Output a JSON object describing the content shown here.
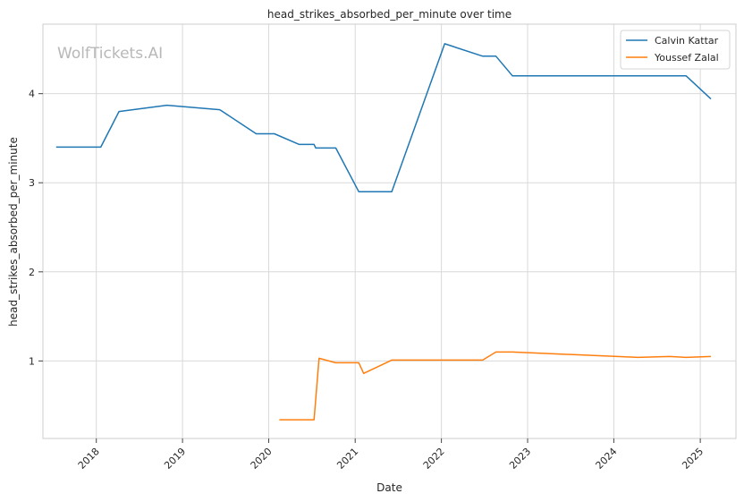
{
  "chart_data": {
    "type": "line",
    "title": "head_strikes_absorbed_per_minute over time",
    "xlabel": "Date",
    "ylabel": "head_strikes_absorbed_per_minute",
    "watermark": "WolfTickets.AI",
    "x_ticks": [
      "2018",
      "2019",
      "2020",
      "2021",
      "2022",
      "2023",
      "2024",
      "2025"
    ],
    "y_ticks": [
      1,
      2,
      3,
      4
    ],
    "xlim": [
      "2017-05-20",
      "2025-06-01"
    ],
    "ylim": [
      0.13,
      4.78
    ],
    "grid": true,
    "legend_position": "top-right",
    "series": [
      {
        "name": "Calvin Kattar",
        "color": "#1f77b4",
        "points": [
          [
            "2017-07-15",
            3.4
          ],
          [
            "2018-01-20",
            3.4
          ],
          [
            "2018-04-07",
            3.8
          ],
          [
            "2018-10-27",
            3.87
          ],
          [
            "2019-06-08",
            3.82
          ],
          [
            "2019-11-09",
            3.55
          ],
          [
            "2020-01-25",
            3.55
          ],
          [
            "2020-05-09",
            3.43
          ],
          [
            "2020-07-11",
            3.43
          ],
          [
            "2020-07-18",
            3.39
          ],
          [
            "2020-10-11",
            3.39
          ],
          [
            "2021-01-16",
            2.9
          ],
          [
            "2021-06-05",
            2.9
          ],
          [
            "2022-01-15",
            4.56
          ],
          [
            "2022-06-25",
            4.42
          ],
          [
            "2022-08-20",
            4.42
          ],
          [
            "2022-10-29",
            4.2
          ],
          [
            "2024-04-13",
            4.2
          ],
          [
            "2024-04-20",
            4.2
          ],
          [
            "2024-11-02",
            4.2
          ],
          [
            "2025-02-15",
            3.94
          ]
        ]
      },
      {
        "name": "Youssef Zalal",
        "color": "#ff7f0e",
        "points": [
          [
            "2020-02-15",
            0.34
          ],
          [
            "2020-07-11",
            0.34
          ],
          [
            "2020-08-01",
            1.03
          ],
          [
            "2020-10-10",
            0.98
          ],
          [
            "2021-01-16",
            0.98
          ],
          [
            "2021-02-06",
            0.86
          ],
          [
            "2021-06-05",
            1.01
          ],
          [
            "2022-06-25",
            1.01
          ],
          [
            "2022-08-20",
            1.1
          ],
          [
            "2022-10-29",
            1.1
          ],
          [
            "2024-04-13",
            1.04
          ],
          [
            "2024-08-24",
            1.05
          ],
          [
            "2024-11-02",
            1.04
          ],
          [
            "2025-02-15",
            1.05
          ]
        ]
      }
    ]
  }
}
